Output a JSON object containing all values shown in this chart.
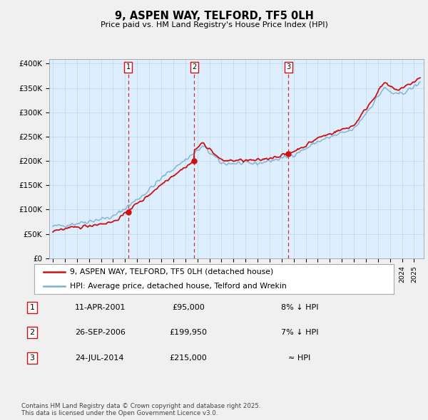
{
  "title": "9, ASPEN WAY, TELFORD, TF5 0LH",
  "subtitle": "Price paid vs. HM Land Registry's House Price Index (HPI)",
  "ylabel_ticks": [
    "£0",
    "£50K",
    "£100K",
    "£150K",
    "£200K",
    "£250K",
    "£300K",
    "£350K",
    "£400K"
  ],
  "ytick_values": [
    0,
    50000,
    100000,
    150000,
    200000,
    250000,
    300000,
    350000,
    400000
  ],
  "ylim": [
    0,
    410000
  ],
  "xlim_start": 1994.7,
  "xlim_end": 2025.8,
  "sale_dates": [
    2001.27,
    2006.73,
    2014.56
  ],
  "sale_prices": [
    95000,
    199950,
    215000
  ],
  "sale_labels": [
    "1",
    "2",
    "3"
  ],
  "hpi_color": "#7bafd4",
  "price_color": "#cc1111",
  "dashed_color": "#cc1111",
  "plot_bg_color": "#ddeeff",
  "legend_price_label": "9, ASPEN WAY, TELFORD, TF5 0LH (detached house)",
  "legend_hpi_label": "HPI: Average price, detached house, Telford and Wrekin",
  "table_rows": [
    [
      "1",
      "11-APR-2001",
      "£95,000",
      "8% ↓ HPI"
    ],
    [
      "2",
      "26-SEP-2006",
      "£199,950",
      "7% ↓ HPI"
    ],
    [
      "3",
      "24-JUL-2014",
      "£215,000",
      "≈ HPI"
    ]
  ],
  "footnote": "Contains HM Land Registry data © Crown copyright and database right 2025.\nThis data is licensed under the Open Government Licence v3.0.",
  "bg_color": "#f0f0f0",
  "grid_color": "#c8d8e8"
}
